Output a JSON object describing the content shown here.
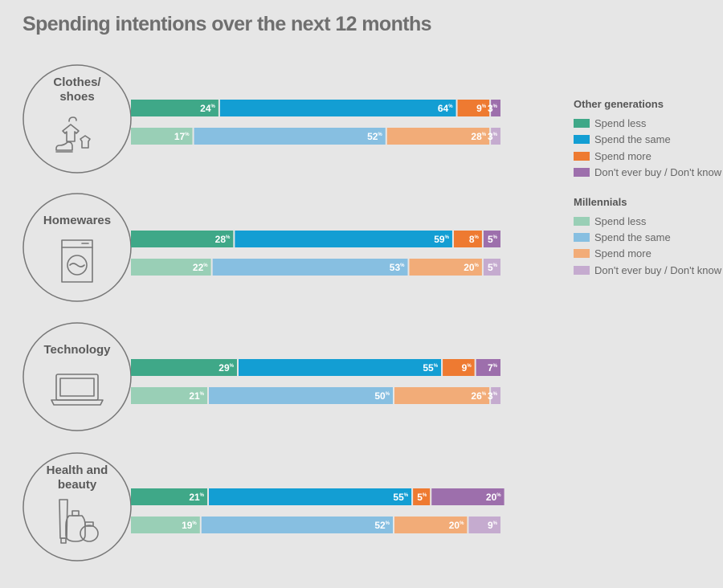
{
  "title": "Spending intentions over the next 12 months",
  "legend": {
    "groups": [
      {
        "title": "Other generations",
        "items": [
          {
            "label": "Spend less",
            "color": "#3fa888"
          },
          {
            "label": "Spend the same",
            "color": "#139ed3"
          },
          {
            "label": "Spend more",
            "color": "#ee7a31"
          },
          {
            "label": "Don't ever buy / Don't know",
            "color": "#9d6fac"
          }
        ]
      },
      {
        "title": "Millennials",
        "items": [
          {
            "label": "Spend less",
            "color": "#99cfb6"
          },
          {
            "label": "Spend the same",
            "color": "#87bfe1"
          },
          {
            "label": "Spend more",
            "color": "#f2ac78"
          },
          {
            "label": "Don't ever buy / Don't know",
            "color": "#c5abcf"
          }
        ]
      }
    ]
  },
  "chart_data": {
    "type": "bar",
    "stacked": true,
    "orientation": "horizontal",
    "unit": "%",
    "categories": [
      {
        "label_lines": [
          "Clothes/",
          "shoes"
        ],
        "icon": "clothes-shoes-icon"
      },
      {
        "label_lines": [
          "Homewares"
        ],
        "icon": "washing-machine-icon"
      },
      {
        "label_lines": [
          "Technology"
        ],
        "icon": "laptop-icon"
      },
      {
        "label_lines": [
          "Health and",
          "beauty"
        ],
        "icon": "cosmetics-icon"
      }
    ],
    "series": [
      {
        "group": "Other generations",
        "values": [
          [
            24,
            64,
            9,
            3
          ],
          [
            28,
            59,
            8,
            5
          ],
          [
            29,
            55,
            9,
            7
          ],
          [
            21,
            55,
            5,
            20
          ]
        ]
      },
      {
        "group": "Millennials",
        "values": [
          [
            17,
            52,
            28,
            3
          ],
          [
            22,
            53,
            20,
            5
          ],
          [
            21,
            50,
            26,
            3
          ],
          [
            19,
            52,
            20,
            9
          ]
        ]
      }
    ]
  }
}
